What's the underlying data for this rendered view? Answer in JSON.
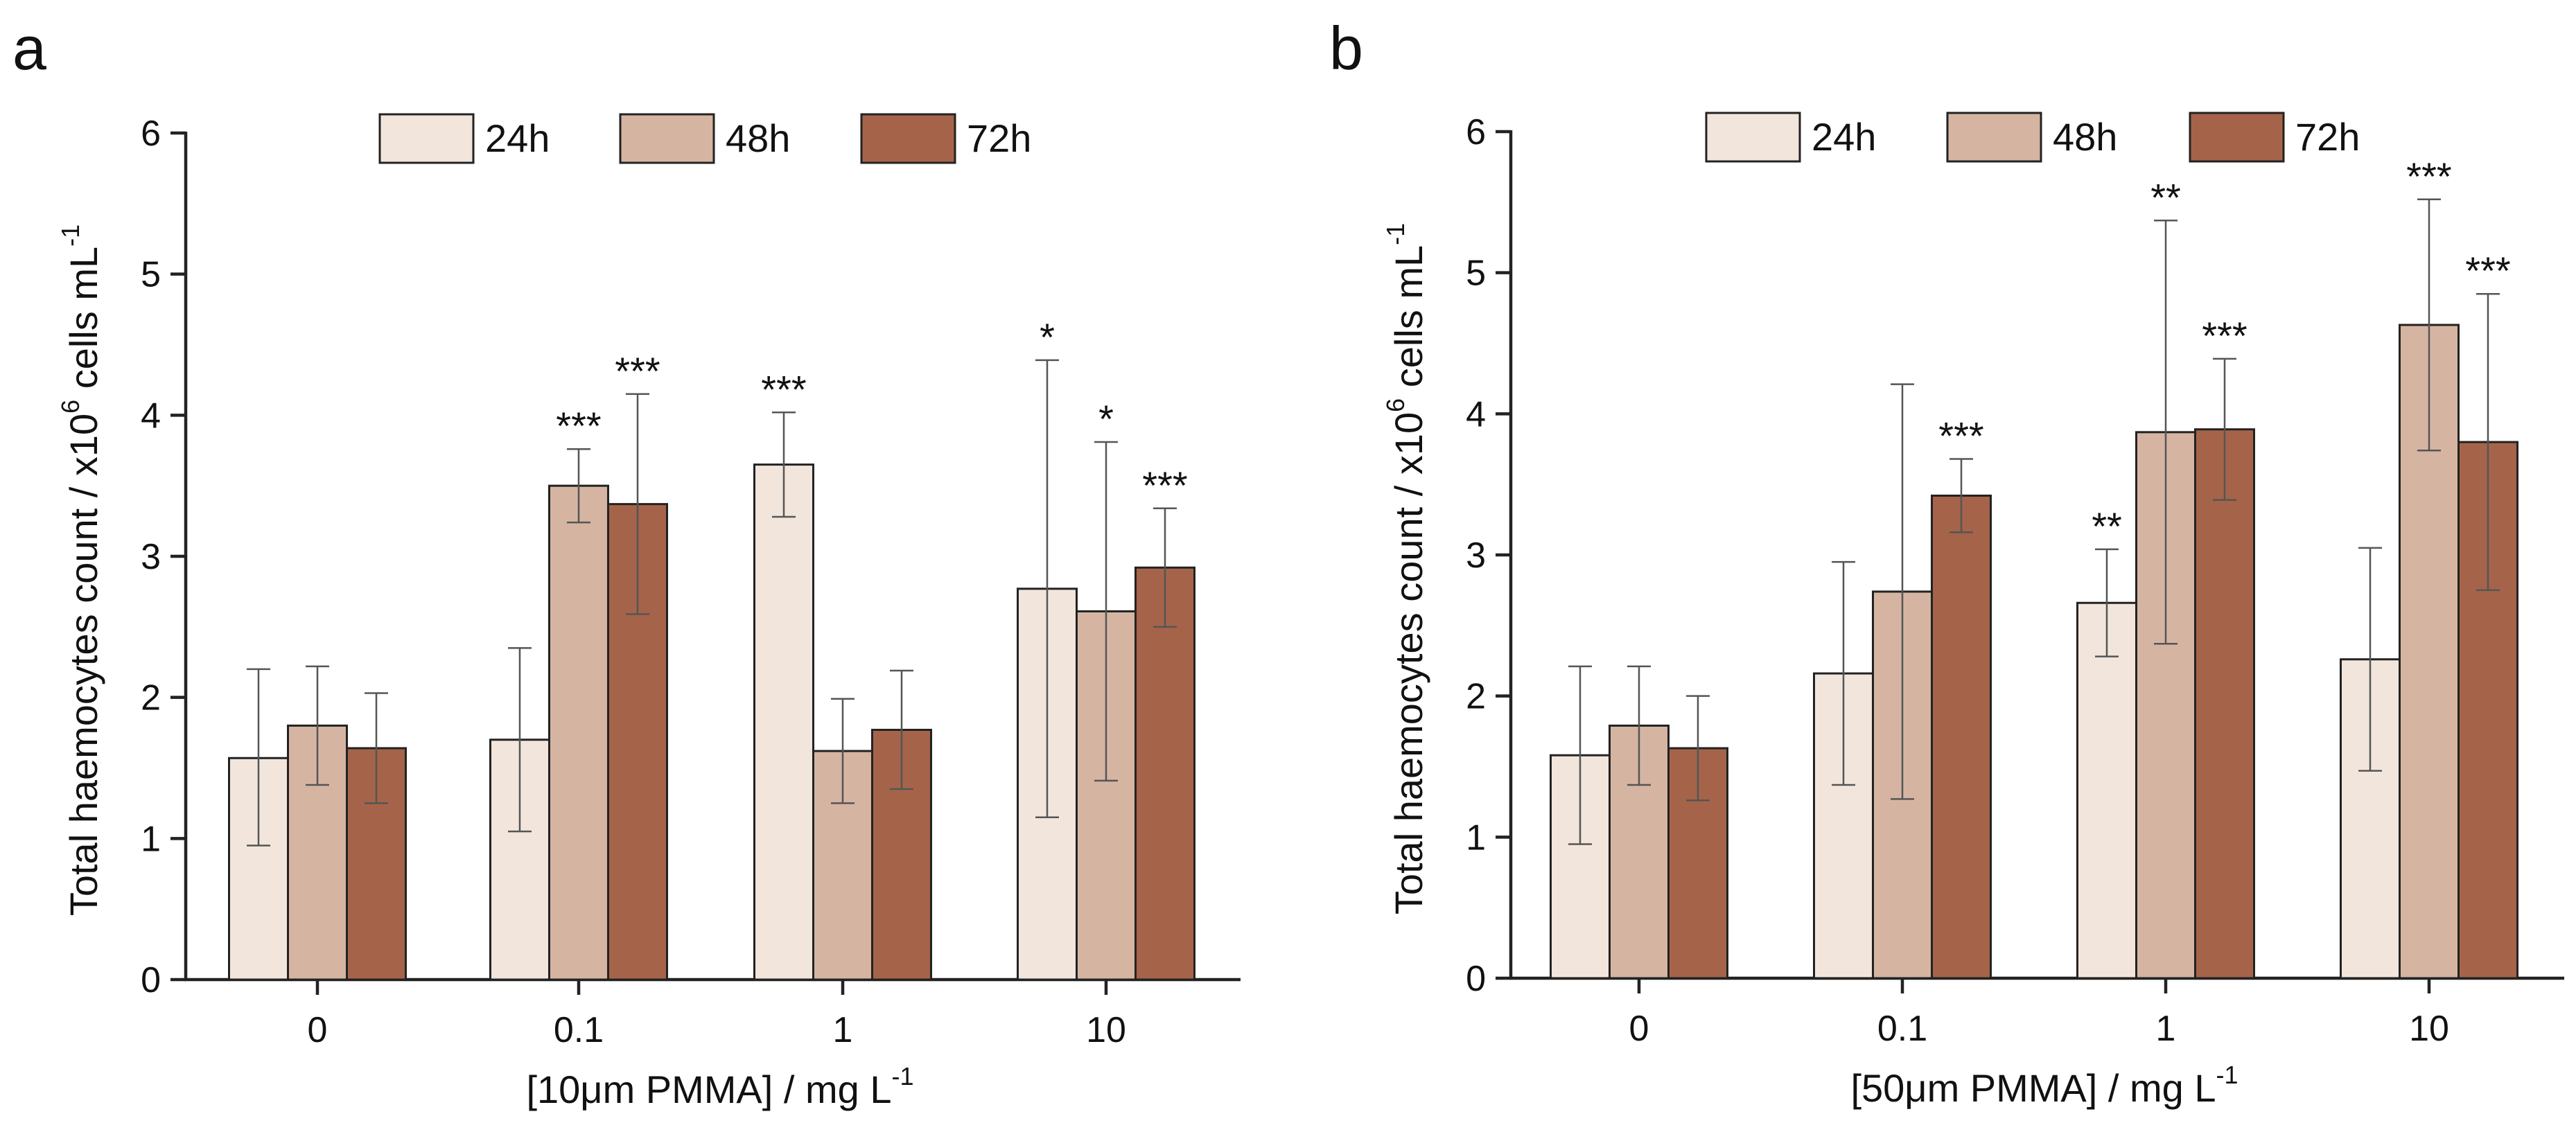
{
  "chart_data": [
    {
      "type": "bar",
      "panel_label": "a",
      "categories": [
        "0",
        "0.1",
        "1",
        "10"
      ],
      "xlabel": "[10μm PMMA] / mg L",
      "xlabel_sup": "-1",
      "ylabel": "Total haemocytes count / x10",
      "ylabel_sup": "6",
      "ylabel_tail": " cells mL",
      "ylabel_tail_sup": "-1",
      "ylim": [
        0,
        6
      ],
      "yticks": [
        "0",
        "1",
        "2",
        "3",
        "4",
        "5",
        "6"
      ],
      "grid": false,
      "legend_position": "top",
      "series": [
        {
          "name": "24h",
          "color": "#f2e6dc",
          "values": [
            1.57,
            1.7,
            3.65,
            2.77
          ],
          "err_up": [
            2.2,
            2.35,
            4.02,
            4.39
          ],
          "err_down": [
            0.95,
            1.05,
            3.28,
            1.15
          ],
          "sig": [
            "",
            "",
            "***",
            "*"
          ]
        },
        {
          "name": "48h",
          "color": "#d5b5a2",
          "values": [
            1.8,
            3.5,
            1.62,
            2.61
          ],
          "err_up": [
            2.22,
            3.76,
            1.99,
            3.81
          ],
          "err_down": [
            1.38,
            3.24,
            1.25,
            1.41
          ],
          "sig": [
            "",
            "***",
            "",
            "*"
          ]
        },
        {
          "name": "72h",
          "color": "#a5644a",
          "values": [
            1.64,
            3.37,
            1.77,
            2.92
          ],
          "err_up": [
            2.03,
            4.15,
            2.19,
            3.34
          ],
          "err_down": [
            1.25,
            2.59,
            1.35,
            2.5
          ],
          "sig": [
            "",
            "***",
            "",
            "***"
          ]
        }
      ]
    },
    {
      "type": "bar",
      "panel_label": "b",
      "categories": [
        "0",
        "0.1",
        "1",
        "10"
      ],
      "xlabel": "[50μm PMMA] / mg L",
      "xlabel_sup": "-1",
      "ylabel": "Total haemocytes count / x10",
      "ylabel_sup": "6",
      "ylabel_tail": " cells mL",
      "ylabel_tail_sup": "-1",
      "ylim": [
        0,
        6
      ],
      "yticks": [
        "0",
        "1",
        "2",
        "3",
        "4",
        "5",
        "6"
      ],
      "grid": false,
      "legend_position": "top",
      "series": [
        {
          "name": "24h",
          "color": "#f2e6dc",
          "values": [
            1.58,
            2.16,
            2.66,
            2.26
          ],
          "err_up": [
            2.21,
            2.95,
            3.04,
            3.05
          ],
          "err_down": [
            0.95,
            1.37,
            2.28,
            1.47
          ],
          "sig": [
            "",
            "",
            "**",
            ""
          ]
        },
        {
          "name": "48h",
          "color": "#d5b5a2",
          "values": [
            1.79,
            2.74,
            3.87,
            4.63
          ],
          "err_up": [
            2.21,
            4.21,
            5.37,
            5.52
          ],
          "err_down": [
            1.37,
            1.27,
            2.37,
            3.74
          ],
          "sig": [
            "",
            "",
            "**",
            "***"
          ]
        },
        {
          "name": "72h",
          "color": "#a5644a",
          "values": [
            1.63,
            3.42,
            3.89,
            3.8
          ],
          "err_up": [
            2.0,
            3.68,
            4.39,
            4.85
          ],
          "err_down": [
            1.26,
            3.16,
            3.39,
            2.75
          ],
          "sig": [
            "",
            "***",
            "***",
            "***"
          ]
        }
      ]
    }
  ]
}
